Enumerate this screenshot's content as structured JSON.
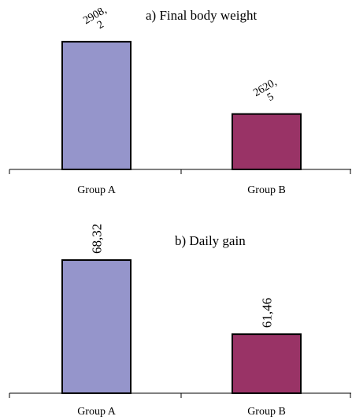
{
  "colors": {
    "group_a": "#9595cb",
    "group_b": "#993366",
    "bar_stroke": "#000000",
    "axis": "#000000"
  },
  "chart_data": [
    {
      "type": "bar",
      "title": "a) Final body weight",
      "categories": [
        "Group A",
        "Group B"
      ],
      "values": [
        2908.2,
        2620.5
      ],
      "value_labels": [
        [
          "2908,",
          "2"
        ],
        [
          "2620,",
          "5"
        ]
      ],
      "ylim": [
        2400,
        2980
      ],
      "grid": false,
      "legend": "none"
    },
    {
      "type": "bar",
      "title": "b) Daily gain",
      "categories": [
        "Group A",
        "Group B"
      ],
      "values": [
        68.32,
        61.46
      ],
      "value_labels": [
        [
          "68,32"
        ],
        [
          "61,46"
        ]
      ],
      "ylim": [
        56,
        70
      ],
      "grid": false,
      "legend": "none"
    }
  ]
}
